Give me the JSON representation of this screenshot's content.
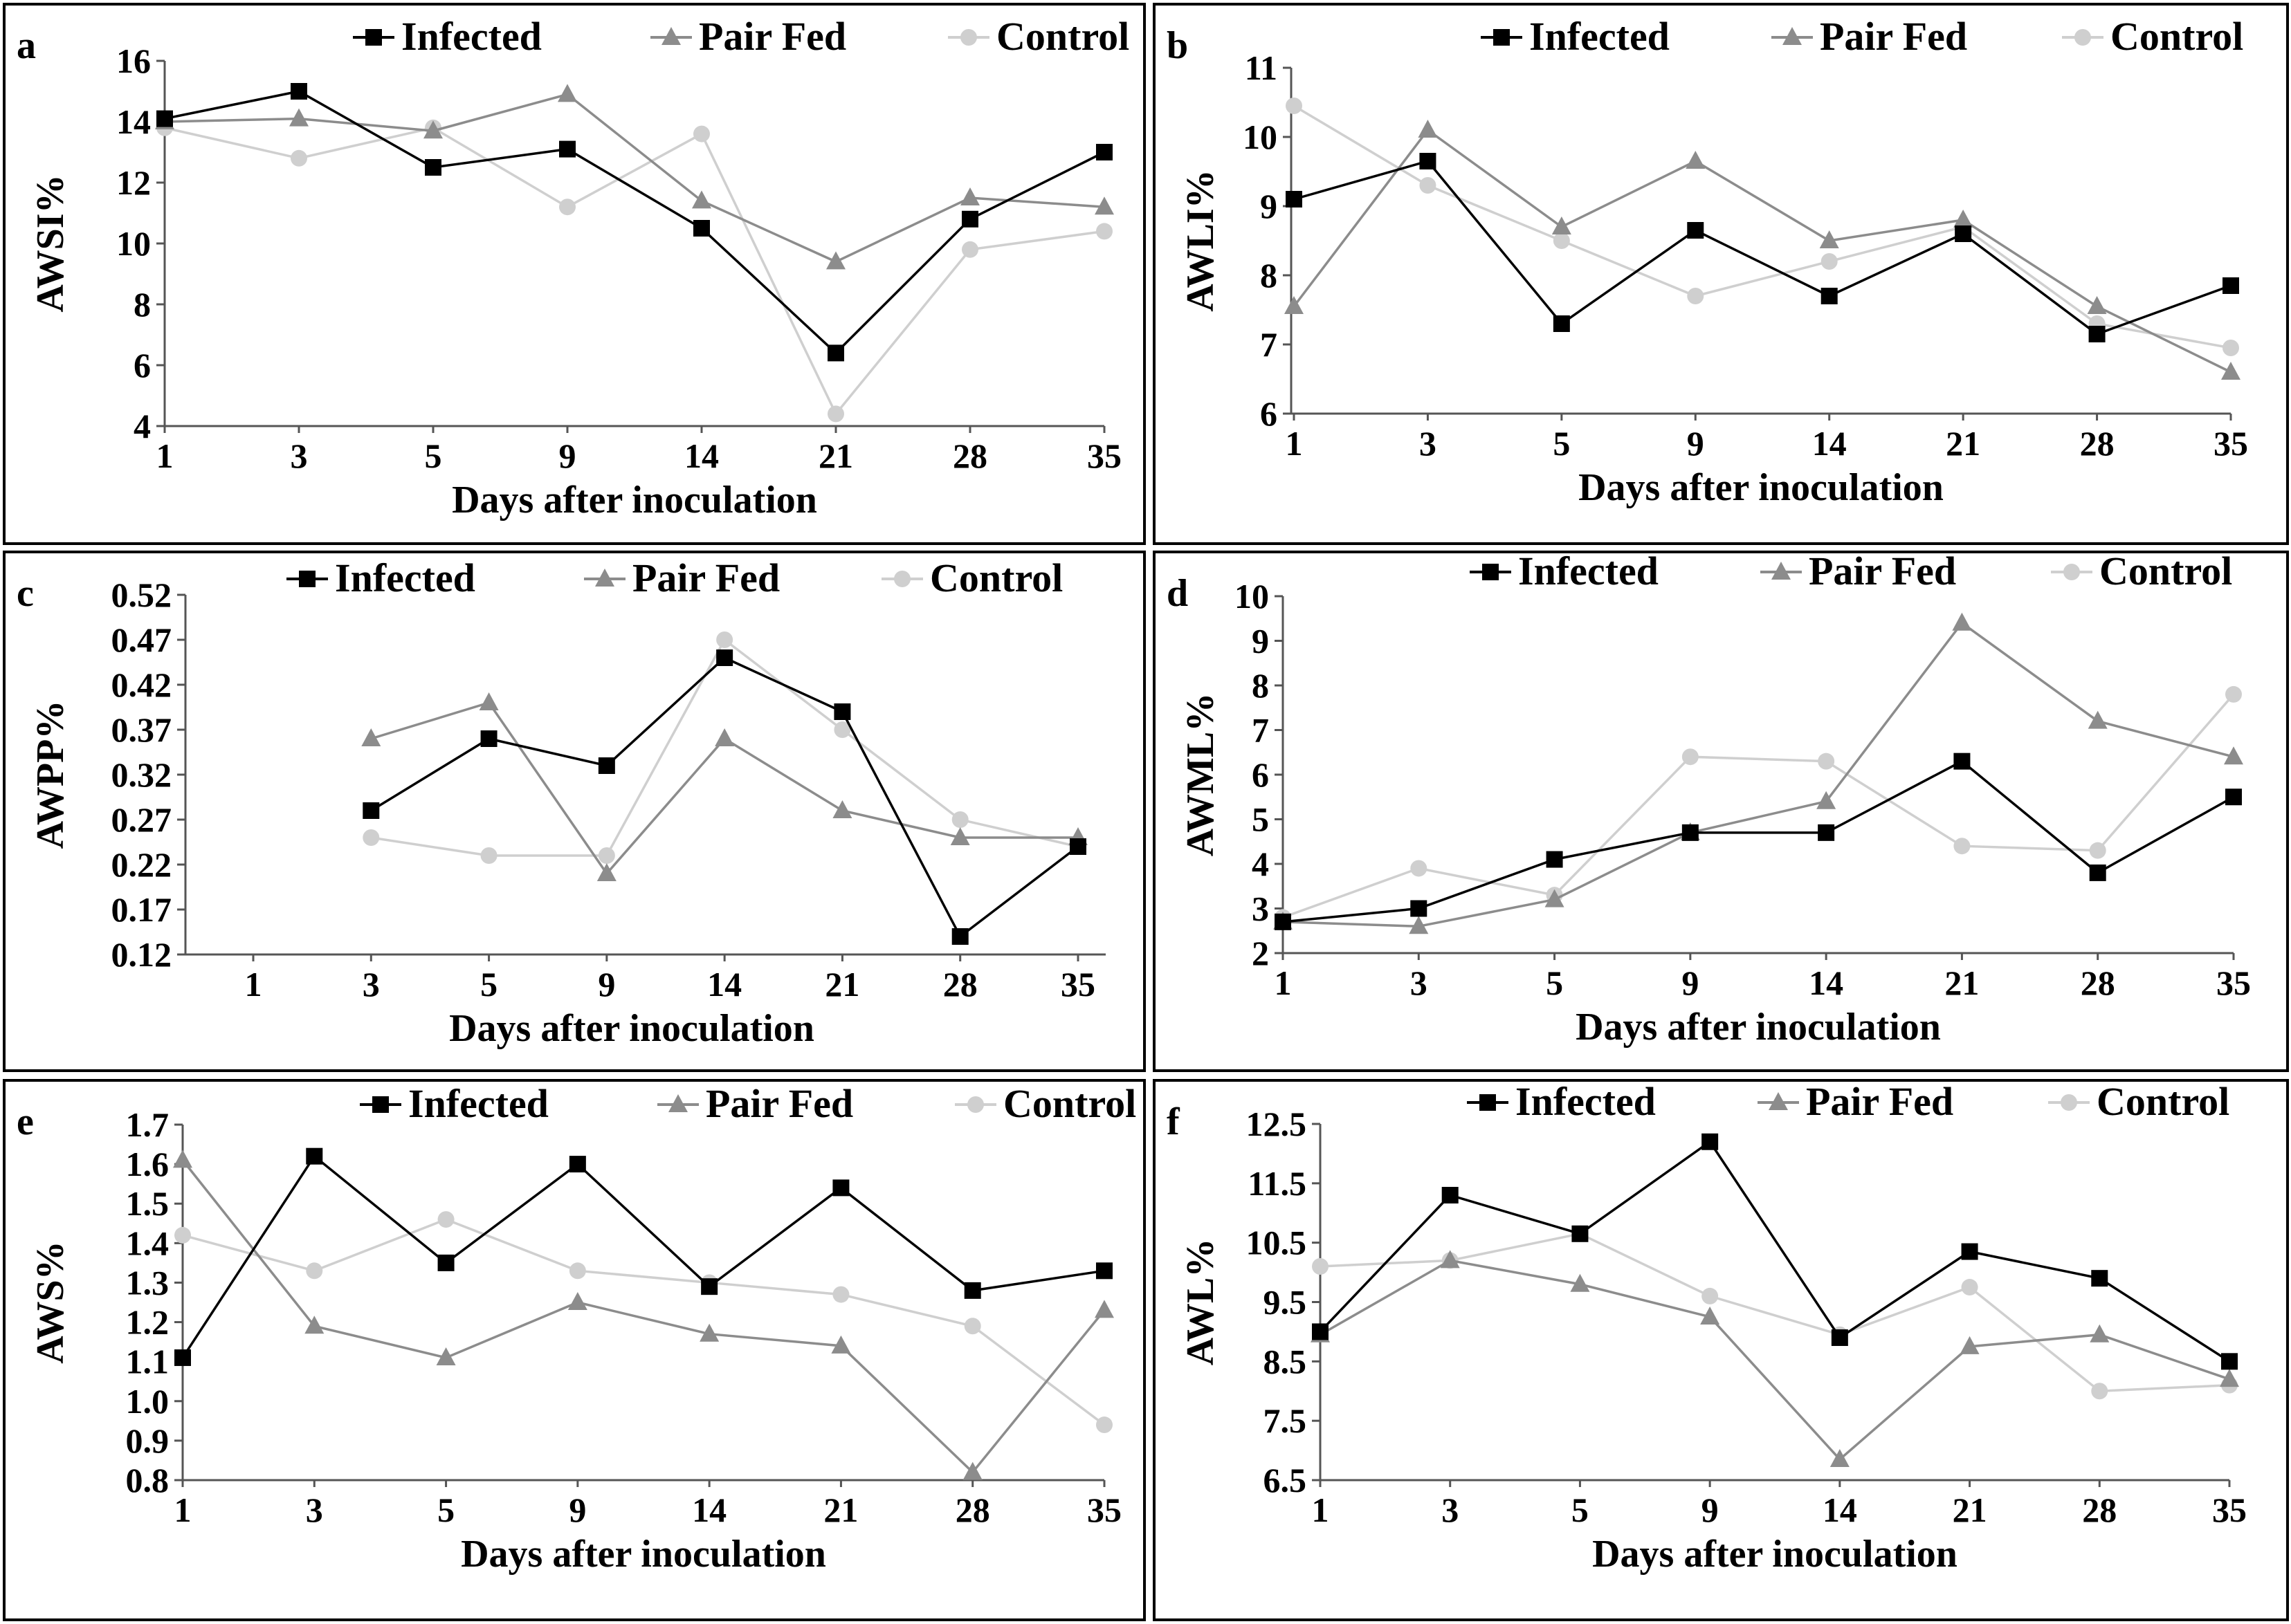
{
  "figure": {
    "colors": {
      "Infected": "#000000",
      "Pair Fed": "#8c8c8c",
      "Control": "#cfcfcf"
    }
  },
  "chart_data": [
    {
      "panel": "a",
      "type": "line",
      "xlabel": "Days after inoculation",
      "ylabel": "AWSI%",
      "categories": [
        "1",
        "3",
        "5",
        "9",
        "14",
        "21",
        "28",
        "35"
      ],
      "yticks": [
        "4",
        "6",
        "8",
        "10",
        "12",
        "14",
        "16"
      ],
      "ylim": [
        4,
        16
      ],
      "series": [
        {
          "name": "Infected",
          "marker": "square",
          "values": [
            14.1,
            15.0,
            12.5,
            13.1,
            10.5,
            6.4,
            10.8,
            13.0
          ]
        },
        {
          "name": "Pair Fed",
          "marker": "triangle",
          "values": [
            14.0,
            14.1,
            13.7,
            14.9,
            11.4,
            9.4,
            11.5,
            11.2
          ]
        },
        {
          "name": "Control",
          "marker": "circle",
          "values": [
            13.8,
            12.8,
            13.8,
            11.2,
            13.6,
            4.4,
            9.8,
            10.4
          ]
        }
      ]
    },
    {
      "panel": "b",
      "type": "line",
      "xlabel": "Days after inoculation",
      "ylabel": "AWLI%",
      "categories": [
        "1",
        "3",
        "5",
        "9",
        "14",
        "21",
        "28",
        "35"
      ],
      "yticks": [
        "6",
        "7",
        "8",
        "9",
        "10",
        "11"
      ],
      "ylim": [
        6,
        11
      ],
      "series": [
        {
          "name": "Infected",
          "marker": "square",
          "values": [
            9.1,
            9.65,
            7.3,
            8.65,
            7.7,
            8.6,
            7.15,
            7.85
          ]
        },
        {
          "name": "Pair Fed",
          "marker": "triangle",
          "values": [
            7.55,
            10.1,
            8.7,
            9.65,
            8.5,
            8.8,
            7.55,
            6.6
          ]
        },
        {
          "name": "Control",
          "marker": "circle",
          "values": [
            10.45,
            9.3,
            8.5,
            7.7,
            8.2,
            8.7,
            7.3,
            6.95
          ]
        }
      ]
    },
    {
      "panel": "c",
      "type": "line",
      "xlabel": "Days after inoculation",
      "ylabel": "AWPP%",
      "categories": [
        "1",
        "3",
        "5",
        "9",
        "14",
        "21",
        "28",
        "35"
      ],
      "yticks": [
        "0.12",
        "0.17",
        "0.22",
        "0.27",
        "0.32",
        "0.37",
        "0.42",
        "0.47",
        "0.52"
      ],
      "ylim": [
        0.12,
        0.52
      ],
      "series": [
        {
          "name": "Infected",
          "marker": "square",
          "values": [
            null,
            0.28,
            0.36,
            0.33,
            0.45,
            0.39,
            0.14,
            0.24
          ]
        },
        {
          "name": "Pair Fed",
          "marker": "triangle",
          "values": [
            null,
            0.36,
            0.4,
            0.21,
            0.36,
            0.28,
            0.25,
            0.25
          ]
        },
        {
          "name": "Control",
          "marker": "circle",
          "values": [
            null,
            0.25,
            0.23,
            0.23,
            0.47,
            0.37,
            0.27,
            0.24
          ]
        }
      ]
    },
    {
      "panel": "d",
      "type": "line",
      "xlabel": "Days after inoculation",
      "ylabel": "AWML%",
      "categories": [
        "1",
        "3",
        "5",
        "9",
        "14",
        "21",
        "28",
        "35"
      ],
      "yticks": [
        "2",
        "3",
        "4",
        "5",
        "6",
        "7",
        "8",
        "9",
        "10"
      ],
      "ylim": [
        2,
        10
      ],
      "series": [
        {
          "name": "Infected",
          "marker": "square",
          "values": [
            2.7,
            3.0,
            4.1,
            4.7,
            4.7,
            6.3,
            3.8,
            5.5
          ]
        },
        {
          "name": "Pair Fed",
          "marker": "triangle",
          "values": [
            2.7,
            2.6,
            3.2,
            4.7,
            5.4,
            9.4,
            7.2,
            6.4
          ]
        },
        {
          "name": "Control",
          "marker": "circle",
          "values": [
            2.8,
            3.9,
            3.3,
            6.4,
            6.3,
            4.4,
            4.3,
            7.8
          ]
        }
      ]
    },
    {
      "panel": "e",
      "type": "line",
      "xlabel": "Days after inoculation",
      "ylabel": "AWS%",
      "categories": [
        "1",
        "3",
        "5",
        "9",
        "14",
        "21",
        "28",
        "35"
      ],
      "yticks": [
        "0.8",
        "0.9",
        "1.0",
        "1.1",
        "1.2",
        "1.3",
        "1.4",
        "1.5",
        "1.6",
        "1.7"
      ],
      "ylim": [
        0.8,
        1.7
      ],
      "series": [
        {
          "name": "Infected",
          "marker": "square",
          "values": [
            1.11,
            1.62,
            1.35,
            1.6,
            1.29,
            1.54,
            1.28,
            1.33
          ]
        },
        {
          "name": "Pair Fed",
          "marker": "triangle",
          "values": [
            1.61,
            1.19,
            1.11,
            1.25,
            1.17,
            1.14,
            0.82,
            1.23
          ]
        },
        {
          "name": "Control",
          "marker": "circle",
          "values": [
            1.42,
            1.33,
            1.46,
            1.33,
            1.3,
            1.27,
            1.19,
            0.94
          ]
        }
      ]
    },
    {
      "panel": "f",
      "type": "line",
      "xlabel": "Days after inoculation",
      "ylabel": "AWL%",
      "categories": [
        "1",
        "3",
        "5",
        "9",
        "14",
        "21",
        "28",
        "35"
      ],
      "yticks": [
        "6.5",
        "7.5",
        "8.5",
        "9.5",
        "10.5",
        "11.5",
        "12.5"
      ],
      "ylim": [
        6.5,
        12.5
      ],
      "series": [
        {
          "name": "Infected",
          "marker": "square",
          "values": [
            9.0,
            11.3,
            10.65,
            12.2,
            8.9,
            10.35,
            9.9,
            8.5
          ]
        },
        {
          "name": "Pair Fed",
          "marker": "triangle",
          "values": [
            8.95,
            10.2,
            9.8,
            9.25,
            6.85,
            8.75,
            8.95,
            8.2
          ]
        },
        {
          "name": "Control",
          "marker": "circle",
          "values": [
            10.1,
            10.2,
            10.65,
            9.6,
            8.95,
            9.75,
            8.0,
            8.1
          ]
        }
      ]
    }
  ]
}
